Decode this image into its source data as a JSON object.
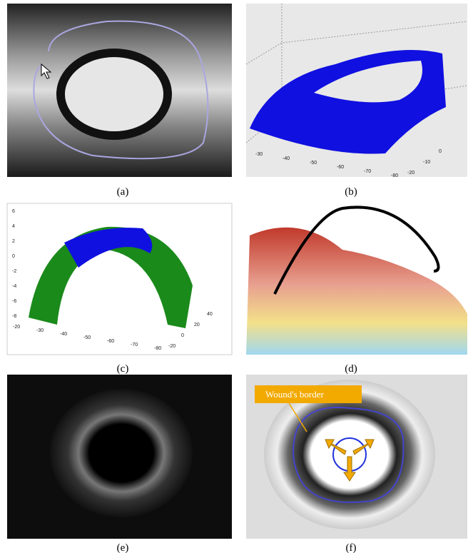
{
  "panels": [
    {
      "caption": "(a)"
    },
    {
      "caption": "(b)",
      "x_ticks": [
        "-30",
        "-40",
        "-50",
        "-60",
        "-70",
        "-80"
      ],
      "y_ticks": [
        "0",
        "-10",
        "-20"
      ]
    },
    {
      "caption": "(c)",
      "z_ticks": [
        "6",
        "4",
        "2",
        "0",
        "-2",
        "-4",
        "-6",
        "-8"
      ],
      "x_ticks": [
        "-20",
        "-30",
        "-40",
        "-50",
        "-60",
        "-70",
        "-80"
      ],
      "y_ticks": [
        "40",
        "20",
        "0",
        "-20"
      ]
    },
    {
      "caption": "(d)"
    },
    {
      "caption": "(e)"
    },
    {
      "caption": "(f)",
      "annotation": "Wound's border"
    }
  ]
}
